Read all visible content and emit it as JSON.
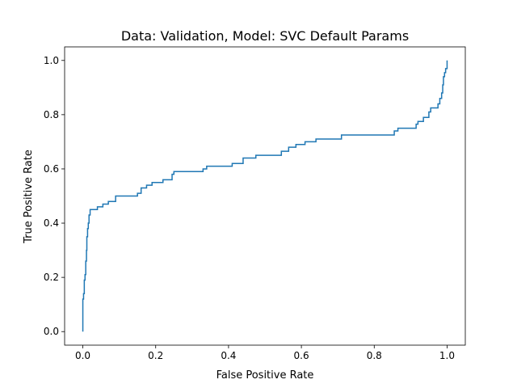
{
  "chart_data": {
    "type": "line",
    "title": "Data: Validation, Model: SVC Default Params",
    "xlabel": "False Positive Rate",
    "ylabel": "True Positive Rate",
    "xlim": [
      -0.05,
      1.05
    ],
    "ylim": [
      -0.05,
      1.05
    ],
    "grid": false,
    "line_color": "#1f77b4",
    "xticks": [
      {
        "value": 0.0,
        "label": "0.0"
      },
      {
        "value": 0.2,
        "label": "0.2"
      },
      {
        "value": 0.4,
        "label": "0.4"
      },
      {
        "value": 0.6,
        "label": "0.6"
      },
      {
        "value": 0.8,
        "label": "0.8"
      },
      {
        "value": 1.0,
        "label": "1.0"
      }
    ],
    "yticks": [
      {
        "value": 0.0,
        "label": "0.0"
      },
      {
        "value": 0.2,
        "label": "0.2"
      },
      {
        "value": 0.4,
        "label": "0.4"
      },
      {
        "value": 0.6,
        "label": "0.6"
      },
      {
        "value": 0.8,
        "label": "0.8"
      },
      {
        "value": 1.0,
        "label": "1.0"
      }
    ],
    "series": [
      {
        "name": "",
        "points": [
          [
            0.0,
            0.0
          ],
          [
            0.0,
            0.12
          ],
          [
            0.002,
            0.12
          ],
          [
            0.002,
            0.14
          ],
          [
            0.004,
            0.14
          ],
          [
            0.004,
            0.19
          ],
          [
            0.006,
            0.19
          ],
          [
            0.006,
            0.21
          ],
          [
            0.008,
            0.21
          ],
          [
            0.008,
            0.26
          ],
          [
            0.01,
            0.26
          ],
          [
            0.01,
            0.3
          ],
          [
            0.011,
            0.3
          ],
          [
            0.011,
            0.35
          ],
          [
            0.013,
            0.35
          ],
          [
            0.013,
            0.38
          ],
          [
            0.015,
            0.38
          ],
          [
            0.015,
            0.4
          ],
          [
            0.017,
            0.4
          ],
          [
            0.017,
            0.43
          ],
          [
            0.02,
            0.43
          ],
          [
            0.02,
            0.45
          ],
          [
            0.04,
            0.45
          ],
          [
            0.04,
            0.46
          ],
          [
            0.055,
            0.46
          ],
          [
            0.055,
            0.47
          ],
          [
            0.07,
            0.47
          ],
          [
            0.07,
            0.48
          ],
          [
            0.09,
            0.48
          ],
          [
            0.09,
            0.5
          ],
          [
            0.15,
            0.5
          ],
          [
            0.15,
            0.51
          ],
          [
            0.16,
            0.51
          ],
          [
            0.16,
            0.53
          ],
          [
            0.175,
            0.53
          ],
          [
            0.175,
            0.54
          ],
          [
            0.19,
            0.54
          ],
          [
            0.19,
            0.55
          ],
          [
            0.22,
            0.55
          ],
          [
            0.22,
            0.56
          ],
          [
            0.245,
            0.56
          ],
          [
            0.245,
            0.58
          ],
          [
            0.25,
            0.58
          ],
          [
            0.25,
            0.59
          ],
          [
            0.33,
            0.59
          ],
          [
            0.33,
            0.6
          ],
          [
            0.34,
            0.6
          ],
          [
            0.34,
            0.61
          ],
          [
            0.41,
            0.61
          ],
          [
            0.41,
            0.62
          ],
          [
            0.44,
            0.62
          ],
          [
            0.44,
            0.64
          ],
          [
            0.475,
            0.64
          ],
          [
            0.475,
            0.65
          ],
          [
            0.545,
            0.65
          ],
          [
            0.545,
            0.665
          ],
          [
            0.565,
            0.665
          ],
          [
            0.565,
            0.68
          ],
          [
            0.585,
            0.68
          ],
          [
            0.585,
            0.69
          ],
          [
            0.61,
            0.69
          ],
          [
            0.61,
            0.7
          ],
          [
            0.64,
            0.7
          ],
          [
            0.64,
            0.71
          ],
          [
            0.71,
            0.71
          ],
          [
            0.71,
            0.725
          ],
          [
            0.855,
            0.725
          ],
          [
            0.855,
            0.74
          ],
          [
            0.865,
            0.74
          ],
          [
            0.865,
            0.75
          ],
          [
            0.915,
            0.75
          ],
          [
            0.915,
            0.765
          ],
          [
            0.92,
            0.765
          ],
          [
            0.92,
            0.775
          ],
          [
            0.935,
            0.775
          ],
          [
            0.935,
            0.79
          ],
          [
            0.95,
            0.79
          ],
          [
            0.95,
            0.81
          ],
          [
            0.955,
            0.81
          ],
          [
            0.955,
            0.825
          ],
          [
            0.975,
            0.825
          ],
          [
            0.975,
            0.84
          ],
          [
            0.98,
            0.84
          ],
          [
            0.98,
            0.86
          ],
          [
            0.985,
            0.86
          ],
          [
            0.985,
            0.88
          ],
          [
            0.988,
            0.88
          ],
          [
            0.988,
            0.91
          ],
          [
            0.99,
            0.91
          ],
          [
            0.99,
            0.94
          ],
          [
            0.993,
            0.94
          ],
          [
            0.993,
            0.955
          ],
          [
            0.996,
            0.955
          ],
          [
            0.996,
            0.97
          ],
          [
            1.0,
            0.97
          ],
          [
            1.0,
            1.0
          ]
        ]
      }
    ]
  }
}
